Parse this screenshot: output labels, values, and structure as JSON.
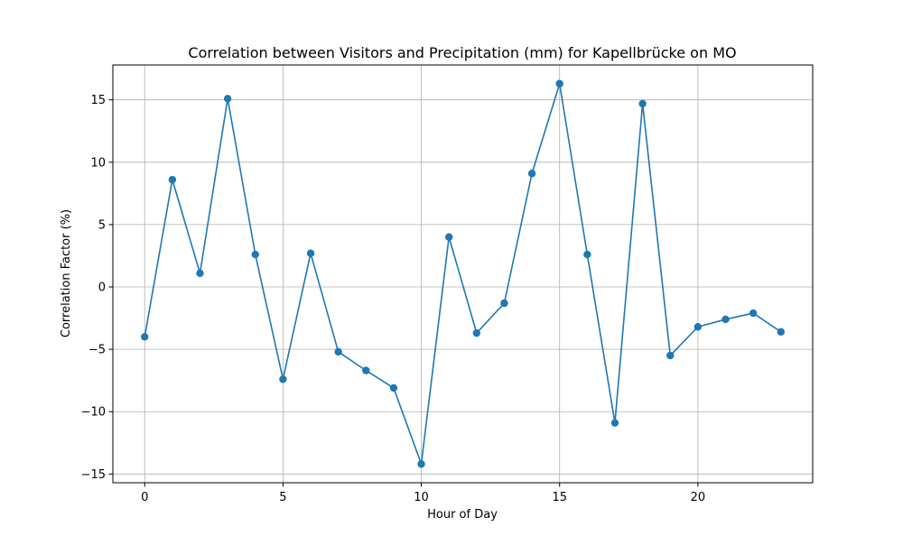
{
  "chart_data": {
    "type": "line",
    "title": "Correlation between Visitors and Precipitation (mm) for Kapellbrücke on MO",
    "xlabel": "Hour of Day",
    "ylabel": "Correlation Factor (%)",
    "x": [
      0,
      1,
      2,
      3,
      4,
      5,
      6,
      7,
      8,
      9,
      10,
      11,
      12,
      13,
      14,
      15,
      16,
      17,
      18,
      19,
      20,
      21,
      22,
      23
    ],
    "series": [
      {
        "values": [
          -4.0,
          8.6,
          1.1,
          15.1,
          2.6,
          -7.4,
          2.7,
          -5.2,
          -6.7,
          -8.1,
          -14.2,
          4.0,
          -3.7,
          -1.3,
          9.1,
          16.3,
          2.6,
          -10.9,
          14.7,
          -5.5,
          -3.2,
          -2.6,
          -2.1,
          -3.6
        ],
        "color": "#1f77b4"
      }
    ],
    "xlim": [
      -1.15,
      24.15
    ],
    "ylim": [
      -15.7,
      17.8
    ],
    "xticks": [
      0,
      5,
      10,
      15,
      20
    ],
    "yticks": [
      -15,
      -10,
      -5,
      0,
      5,
      10,
      15
    ],
    "xtick_labels": [
      "0",
      "5",
      "10",
      "15",
      "20"
    ],
    "ytick_labels": [
      "−15",
      "−10",
      "−5",
      "0",
      "5",
      "10",
      "15"
    ],
    "grid": true,
    "grid_color": "#b0b0b0",
    "legend": false
  }
}
